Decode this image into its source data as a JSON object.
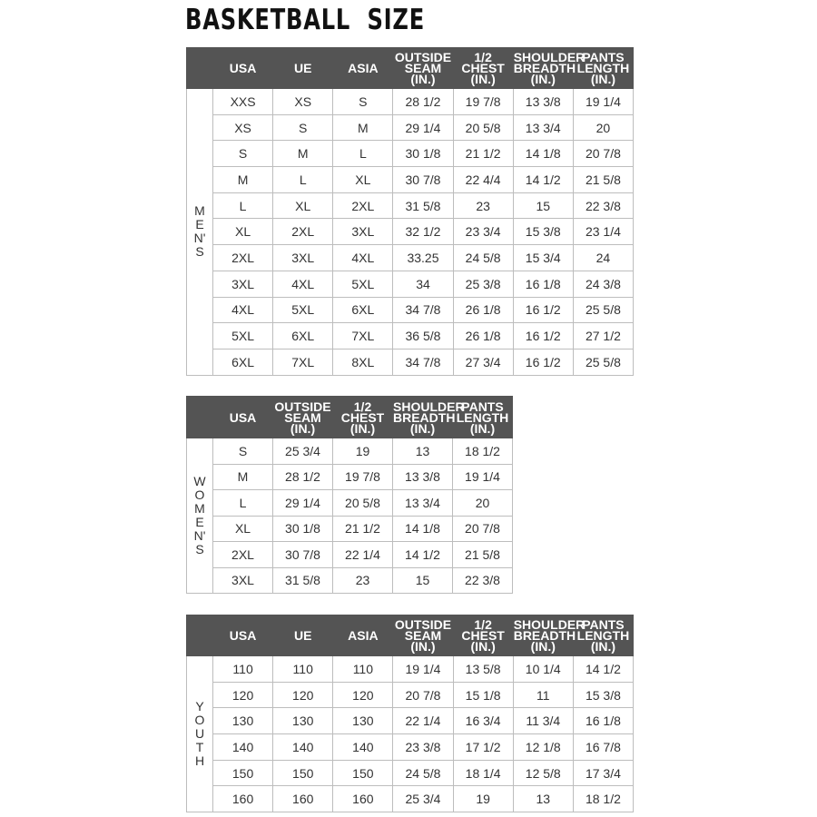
{
  "title": "BASKETBALL  SIZE",
  "colors": {
    "header_bg": "#545454",
    "header_text": "#ffffff",
    "grid": "#bdbdbd"
  },
  "tables": [
    {
      "id": "men",
      "side_label": [
        "M",
        "E",
        "N'",
        "S"
      ],
      "headers": [
        "USA",
        "UE",
        "ASIA",
        "OUTSIDE\nSEAM\n(IN.)",
        "1/2\nCHEST\n(IN.)",
        "SHOULDER\nBREADTH\n(IN.)",
        "PANTS\nLENGTH\n(IN.)"
      ],
      "rows": [
        [
          "XXS",
          "XS",
          "S",
          "28 1/2",
          "19 7/8",
          "13 3/8",
          "19 1/4"
        ],
        [
          "XS",
          "S",
          "M",
          "29 1/4",
          "20 5/8",
          "13 3/4",
          "20"
        ],
        [
          "S",
          "M",
          "L",
          "30 1/8",
          "21 1/2",
          "14 1/8",
          "20 7/8"
        ],
        [
          "M",
          "L",
          "XL",
          "30 7/8",
          "22 4/4",
          "14 1/2",
          "21 5/8"
        ],
        [
          "L",
          "XL",
          "2XL",
          "31 5/8",
          "23",
          "15",
          "22 3/8"
        ],
        [
          "XL",
          "2XL",
          "3XL",
          "32 1/2",
          "23 3/4",
          "15 3/8",
          "23 1/4"
        ],
        [
          "2XL",
          "3XL",
          "4XL",
          "33.25",
          "24 5/8",
          "15 3/4",
          "24"
        ],
        [
          "3XL",
          "4XL",
          "5XL",
          "34",
          "25 3/8",
          "16 1/8",
          "24 3/8"
        ],
        [
          "4XL",
          "5XL",
          "6XL",
          "34 7/8",
          "26 1/8",
          "16 1/2",
          "25 5/8"
        ],
        [
          "5XL",
          "6XL",
          "7XL",
          "36 5/8",
          "26 1/8",
          "16 1/2",
          "27 1/2"
        ],
        [
          "6XL",
          "7XL",
          "8XL",
          "34 7/8",
          "27 3/4",
          "16 1/2",
          "25 5/8"
        ]
      ]
    },
    {
      "id": "women",
      "side_label": [
        "W",
        "O",
        "M",
        "E",
        "N'",
        "S"
      ],
      "headers": [
        "USA",
        "OUTSIDE\nSEAM\n(IN.)",
        "1/2\nCHEST\n(IN.)",
        "SHOULDER\nBREADTH\n(IN.)",
        "PANTS\nLENGTH\n(IN.)"
      ],
      "rows": [
        [
          "S",
          "25 3/4",
          "19",
          "13",
          "18 1/2"
        ],
        [
          "M",
          "28 1/2",
          "19 7/8",
          "13 3/8",
          "19 1/4"
        ],
        [
          "L",
          "29 1/4",
          "20 5/8",
          "13 3/4",
          "20"
        ],
        [
          "XL",
          "30 1/8",
          "21 1/2",
          "14 1/8",
          "20 7/8"
        ],
        [
          "2XL",
          "30 7/8",
          "22 1/4",
          "14 1/2",
          "21 5/8"
        ],
        [
          "3XL",
          "31 5/8",
          "23",
          "15",
          "22 3/8"
        ]
      ]
    },
    {
      "id": "youth",
      "side_label": [
        "Y",
        "O",
        "U",
        "T",
        "H"
      ],
      "headers": [
        "USA",
        "UE",
        "ASIA",
        "OUTSIDE\nSEAM\n(IN.)",
        "1/2\nCHEST\n(IN.)",
        "SHOULDER\nBREADTH\n(IN.)",
        "PANTS\nLENGTH\n(IN.)"
      ],
      "rows": [
        [
          "110",
          "110",
          "110",
          "19 1/4",
          "13 5/8",
          "10 1/4",
          "14 1/2"
        ],
        [
          "120",
          "120",
          "120",
          "20 7/8",
          "15 1/8",
          "11",
          "15 3/8"
        ],
        [
          "130",
          "130",
          "130",
          "22 1/4",
          "16 3/4",
          "11 3/4",
          "16 1/8"
        ],
        [
          "140",
          "140",
          "140",
          "23 3/8",
          "17 1/2",
          "12 1/8",
          "16 7/8"
        ],
        [
          "150",
          "150",
          "150",
          "24 5/8",
          "18 1/4",
          "12 5/8",
          "17 3/4"
        ],
        [
          "160",
          "160",
          "160",
          "25 3/4",
          "19",
          "13",
          "18 1/2"
        ]
      ]
    }
  ]
}
